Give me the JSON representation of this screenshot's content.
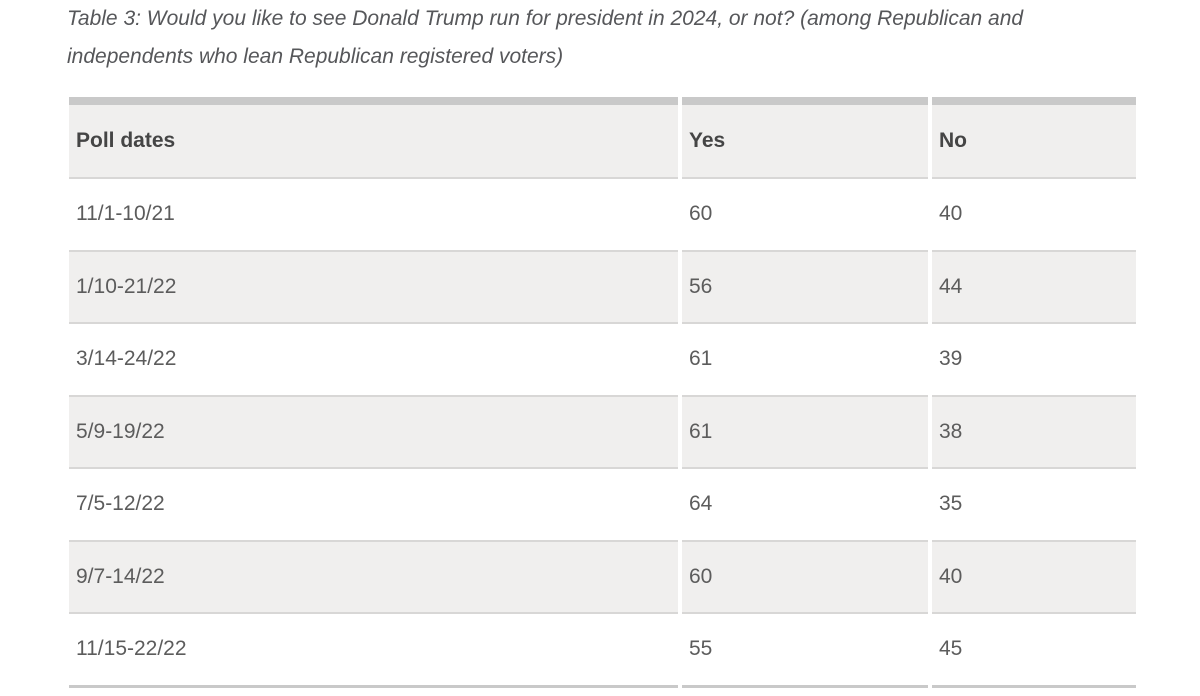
{
  "caption": {
    "text": "Table 3: Would you like to see Donald Trump run for president in 2024, or not? (among Republican and independents who lean Republican registered voters)"
  },
  "table": {
    "columns": [
      "Poll dates",
      "Yes",
      "No"
    ],
    "rows": [
      {
        "date": "11/1-10/21",
        "yes": "60",
        "no": "40"
      },
      {
        "date": "1/10-21/22",
        "yes": "56",
        "no": "44"
      },
      {
        "date": "3/14-24/22",
        "yes": "61",
        "no": "39"
      },
      {
        "date": "5/9-19/22",
        "yes": "61",
        "no": "38"
      },
      {
        "date": "7/5-12/22",
        "yes": "64",
        "no": "35"
      },
      {
        "date": "9/7-14/22",
        "yes": "60",
        "no": "40"
      },
      {
        "date": "11/15-22/22",
        "yes": "55",
        "no": "45"
      }
    ]
  },
  "chart_data": {
    "type": "table",
    "title": "Table 3: Would you like to see Donald Trump run for president in 2024, or not? (among Republican and independents who lean Republican registered voters)",
    "columns": [
      "Poll dates",
      "Yes",
      "No"
    ],
    "categories": [
      "11/1-10/21",
      "1/10-21/22",
      "3/14-24/22",
      "5/9-19/22",
      "7/5-12/22",
      "9/7-14/22",
      "11/15-22/22"
    ],
    "series": [
      {
        "name": "Yes",
        "values": [
          60,
          56,
          61,
          61,
          64,
          60,
          55
        ]
      },
      {
        "name": "No",
        "values": [
          40,
          44,
          39,
          38,
          35,
          40,
          45
        ]
      }
    ]
  },
  "colors": {
    "page_background": "#ffffff",
    "caption_text": "#56575a",
    "table_top_border": "#c9c9c9",
    "table_bottom_border": "#c9c9c9",
    "header_background": "#f0efee",
    "alt_row_background": "#f0efee",
    "row_divider": "#d8d7d6",
    "header_text": "#454545",
    "cell_text": "#5c5c5c"
  }
}
